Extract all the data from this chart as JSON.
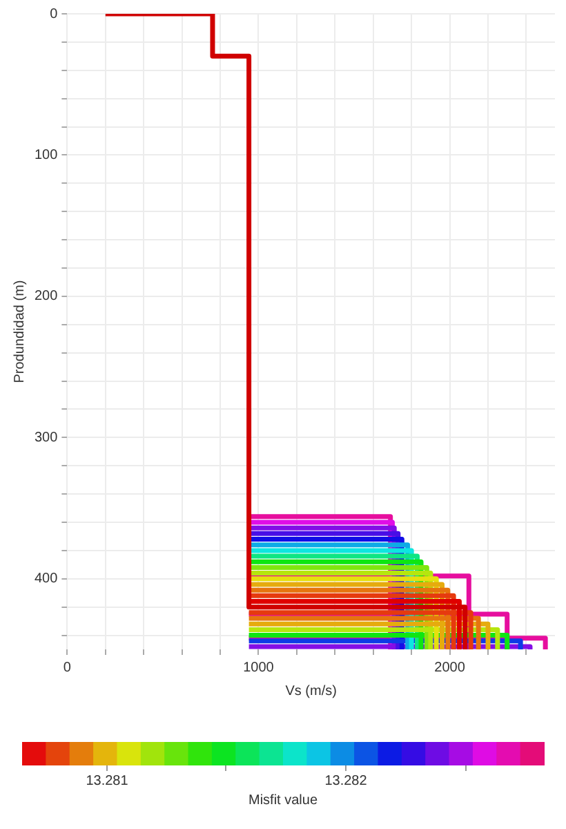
{
  "chart_data": {
    "type": "line",
    "xlabel": "Vs (m/s)",
    "ylabel": "Produndidad (m)",
    "clabel": "Misfit value",
    "xlim": [
      0,
      2550
    ],
    "ylim": [
      450,
      0
    ],
    "xticks": [
      0,
      {
        "value": 200,
        "label": null
      },
      {
        "value": 400,
        "label": null
      },
      {
        "value": 600,
        "label": null
      },
      {
        "value": 800,
        "label": null
      },
      1000,
      {
        "value": 1200,
        "label": null
      },
      {
        "value": 1400,
        "label": null
      },
      {
        "value": 1600,
        "label": null
      },
      {
        "value": 1800,
        "label": null
      },
      2000,
      {
        "value": 2200,
        "label": null
      },
      {
        "value": 2400,
        "label": null
      }
    ],
    "yticks": [
      0,
      {
        "value": 20,
        "label": null
      },
      {
        "value": 40,
        "label": null
      },
      {
        "value": 60,
        "label": null
      },
      {
        "value": 80,
        "label": null
      },
      100,
      {
        "value": 120,
        "label": null
      },
      {
        "value": 140,
        "label": null
      },
      {
        "value": 160,
        "label": null
      },
      {
        "value": 180,
        "label": null
      },
      200,
      {
        "value": 220,
        "label": null
      },
      {
        "value": 240,
        "label": null
      },
      {
        "value": 260,
        "label": null
      },
      {
        "value": 280,
        "label": null
      },
      300,
      {
        "value": 320,
        "label": null
      },
      {
        "value": 340,
        "label": null
      },
      {
        "value": 360,
        "label": null
      },
      {
        "value": 380,
        "label": null
      },
      400,
      {
        "value": 420,
        "label": null
      },
      {
        "value": 440,
        "label": null
      }
    ],
    "clim": [
      13.28065,
      13.28283
    ],
    "cticks": [
      13.281,
      {
        "value": 13.2815,
        "label": null
      },
      13.282,
      {
        "value": 13.2825,
        "label": null
      }
    ],
    "grid": true,
    "legend": false,
    "marker": "none",
    "line_style": "solid",
    "series": [
      {
        "color": "#d00000",
        "x": [
          200,
          760,
          760,
          950,
          950,
          2080,
          2080
        ],
        "values": [
          0,
          0,
          30,
          30,
          420,
          420,
          450
        ]
      },
      {
        "color": "#e00000",
        "x": [
          950,
          2050,
          2050
        ],
        "values": [
          416,
          416,
          450
        ]
      },
      {
        "color": "#e63a0e",
        "x": [
          950,
          2020,
          2020
        ],
        "values": [
          412,
          412,
          450
        ]
      },
      {
        "color": "#e63a0e",
        "x": [
          950,
          2110,
          2110
        ],
        "values": [
          424,
          424,
          450
        ]
      },
      {
        "color": "#e6740e",
        "x": [
          950,
          1990,
          1990
        ],
        "values": [
          408,
          408,
          450
        ]
      },
      {
        "color": "#e6740e",
        "x": [
          950,
          2150,
          2150
        ],
        "values": [
          428,
          428,
          450
        ]
      },
      {
        "color": "#e6ab0e",
        "x": [
          950,
          1960,
          1960
        ],
        "values": [
          404,
          404,
          450
        ]
      },
      {
        "color": "#e6ab0e",
        "x": [
          950,
          2200,
          2200
        ],
        "values": [
          432,
          432,
          450
        ]
      },
      {
        "color": "#e6e00e",
        "x": [
          950,
          1930,
          1930
        ],
        "values": [
          400,
          400,
          450
        ]
      },
      {
        "color": "#b6e60e",
        "x": [
          950,
          1900,
          1900
        ],
        "values": [
          396,
          396,
          450
        ]
      },
      {
        "color": "#b6e60e",
        "x": [
          950,
          2250,
          2250
        ],
        "values": [
          436,
          436,
          450
        ]
      },
      {
        "color": "#7fe60e",
        "x": [
          950,
          1880,
          1880
        ],
        "values": [
          392,
          392,
          450
        ]
      },
      {
        "color": "#0ee612",
        "x": [
          950,
          1850,
          1850
        ],
        "values": [
          388,
          388,
          450
        ]
      },
      {
        "color": "#0ee612",
        "x": [
          950,
          2300,
          2300
        ],
        "values": [
          440,
          440,
          450
        ]
      },
      {
        "color": "#0ee683",
        "x": [
          950,
          1830,
          1830
        ],
        "values": [
          384,
          384,
          450
        ]
      },
      {
        "color": "#0ee6e0",
        "x": [
          950,
          1800,
          1800
        ],
        "values": [
          380,
          380,
          450
        ]
      },
      {
        "color": "#0eabe6",
        "x": [
          950,
          1780,
          1780
        ],
        "values": [
          376,
          376,
          450
        ]
      },
      {
        "color": "#0e3ae6",
        "x": [
          950,
          2370,
          2370
        ],
        "values": [
          444,
          444,
          450
        ]
      },
      {
        "color": "#120ee6",
        "x": [
          950,
          1750,
          1750
        ],
        "values": [
          372,
          372,
          450
        ]
      },
      {
        "color": "#480ee6",
        "x": [
          950,
          1730,
          1730
        ],
        "values": [
          368,
          368,
          450
        ]
      },
      {
        "color": "#830ee6",
        "x": [
          950,
          1710,
          1710
        ],
        "values": [
          364,
          364,
          450
        ]
      },
      {
        "color": "#830ee6",
        "x": [
          950,
          2420,
          2420
        ],
        "values": [
          448,
          448,
          450
        ]
      },
      {
        "color": "#e00ee6",
        "x": [
          950,
          1700,
          1700
        ],
        "values": [
          360,
          360,
          450
        ]
      },
      {
        "color": "#e60e9e",
        "x": [
          950,
          1690,
          1690
        ],
        "values": [
          356,
          356,
          450
        ]
      },
      {
        "color": "#e60e9e",
        "x": [
          950,
          2100,
          2100
        ],
        "values": [
          398,
          398,
          450
        ]
      },
      {
        "color": "#e60e9e",
        "x": [
          950,
          2300,
          2300
        ],
        "values": [
          425,
          425,
          450
        ]
      },
      {
        "color": "#e60e9e",
        "x": [
          950,
          2500,
          2500
        ],
        "values": [
          442,
          442,
          450
        ]
      }
    ]
  }
}
